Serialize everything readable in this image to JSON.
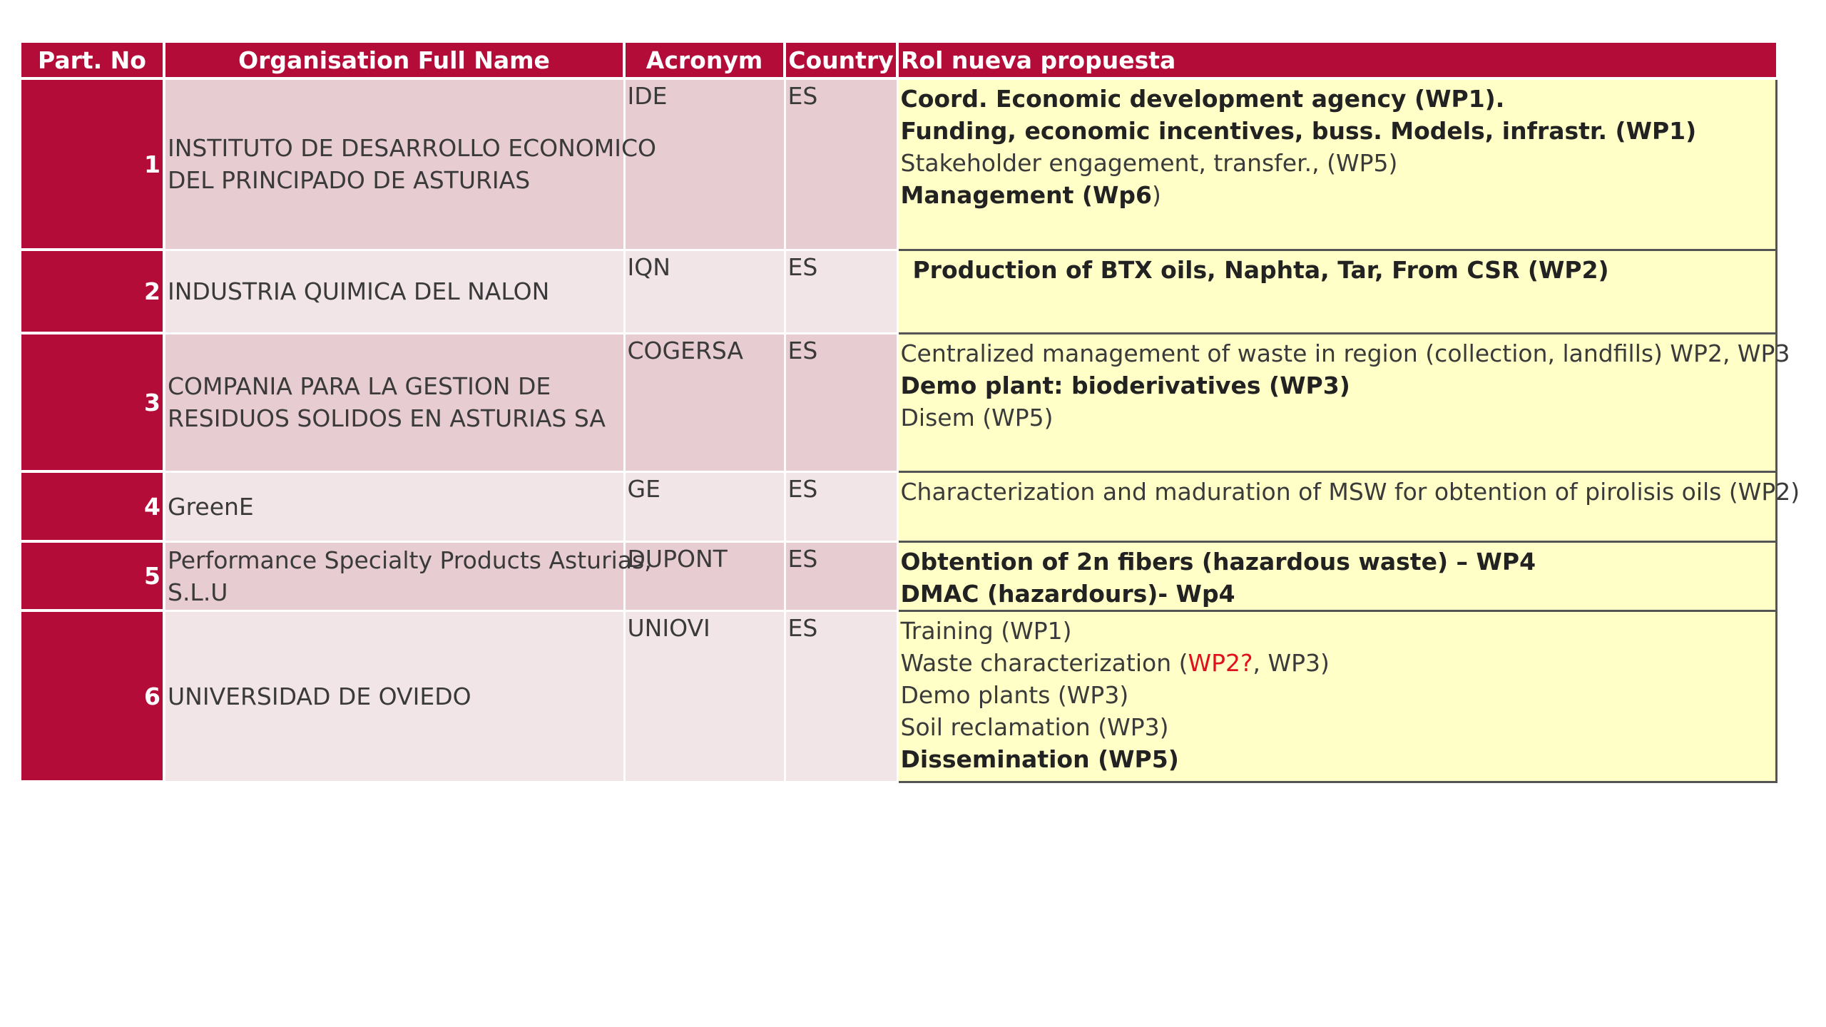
{
  "table": {
    "headers": {
      "part_no": "Part. No",
      "org": "Organisation Full Name",
      "acronym": "Acronym",
      "country": "Country",
      "role": "Rol nueva propuesta"
    },
    "rows": [
      {
        "no": "1",
        "org_lines": [
          "INSTITUTO DE DESARROLLO ECONOMICO",
          "DEL PRINCIPADO DE ASTURIAS"
        ],
        "acronym": "IDE",
        "country": "ES",
        "role": [
          "Coord. Economic development agency (WP1).",
          "Funding, economic incentives, buss. Models, infrastr.  (WP1)",
          "Stakeholder engagement, transfer.,  (WP5)",
          {
            "a": "Management (Wp6",
            "b": ")"
          }
        ]
      },
      {
        "no": "2",
        "org_lines": [
          "INDUSTRIA QUIMICA DEL NALON"
        ],
        "acronym": "IQN",
        "country": "ES",
        "role": [
          "Production of BTX oils, Naphta, Tar, From CSR (WP2)"
        ]
      },
      {
        "no": "3",
        "org_lines": [
          "COMPANIA PARA LA GESTION DE",
          "RESIDUOS SOLIDOS EN ASTURIAS SA"
        ],
        "acronym": "COGERSA",
        "country": "ES",
        "role": [
          "Centralized management of waste in region (collection, landfills) WP2, WP3",
          "Demo plant: bioderivatives (WP3)",
          "Disem (WP5)"
        ]
      },
      {
        "no": "4",
        "org_lines": [
          "GreenE"
        ],
        "acronym": "GE",
        "country": "ES",
        "role": [
          "Characterization and maduration of MSW for obtention of pirolisis oils (WP2)"
        ]
      },
      {
        "no": "5",
        "org_lines": [
          "Performance Specialty Products Asturias,",
          "S.L.U"
        ],
        "acronym": "DUPONT",
        "country": "ES",
        "role": [
          "Obtention of 2n fibers (hazardous waste) – WP4",
          "DMAC (hazardours)- Wp4"
        ]
      },
      {
        "no": "6",
        "org_lines": [
          "UNIVERSIDAD DE OVIEDO"
        ],
        "acronym": "UNIOVI",
        "country": "ES",
        "role": [
          "Training (WP1)",
          {
            "a": "Waste characterization (",
            "b": "WP2?",
            "c": ", WP3)"
          },
          "Demo plants (WP3)",
          "Soil reclamation (WP3)",
          "Dissemination (WP5)"
        ]
      }
    ]
  },
  "colors": {
    "header_bg": "#b30c38",
    "row_odd": "#e7cdd2",
    "row_even": "#f2e5e8",
    "role_bg": "#ffffc7",
    "highlight": "#e0101c"
  }
}
